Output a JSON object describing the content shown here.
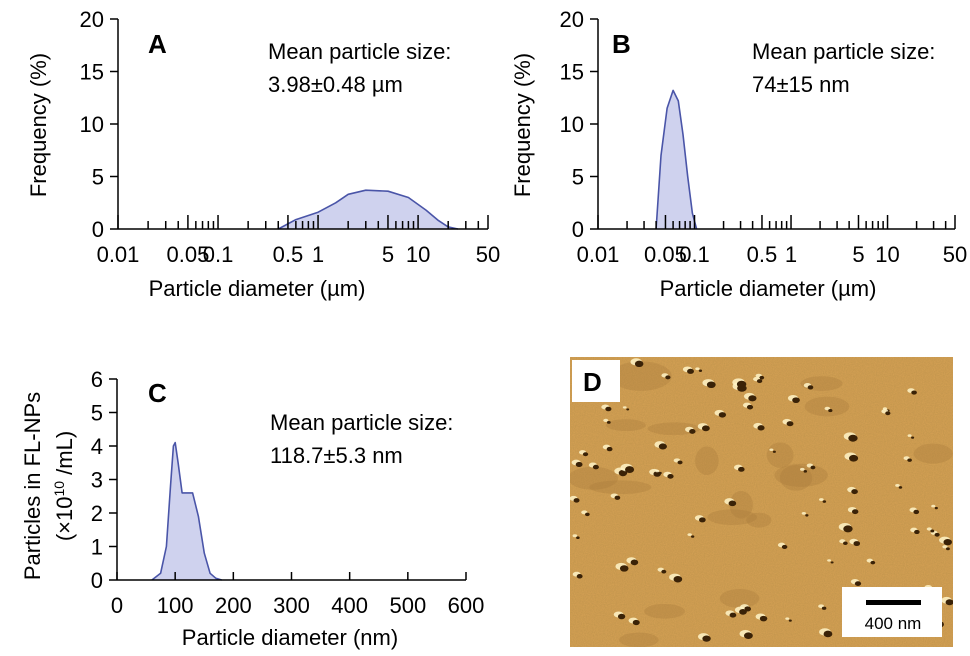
{
  "chart_data": [
    {
      "panel": "A",
      "type": "area",
      "xscale": "log",
      "xlabel": "Particle diameter (µm)",
      "ylabel": "Frequency (%)",
      "ylim": [
        0,
        20
      ],
      "yticks": [
        0,
        5,
        10,
        15,
        20
      ],
      "xtick_labels": [
        {
          "x": 0.01,
          "label": "0.01"
        },
        {
          "x": 0.05,
          "label": "0.05"
        },
        {
          "x": 0.1,
          "label": "0.1"
        },
        {
          "x": 0.5,
          "label": "0.5"
        },
        {
          "x": 1,
          "label": "1"
        },
        {
          "x": 5,
          "label": "5"
        },
        {
          "x": 10,
          "label": "10"
        },
        {
          "x": 50,
          "label": "50"
        }
      ],
      "annotation": [
        "Mean particle size:",
        "3.98±0.48 µm"
      ],
      "color": "#4a55a8",
      "fill": "#cfd2ee",
      "series": [
        {
          "x": [
            0.4,
            0.6,
            1,
            1.5,
            2,
            3,
            5,
            8,
            12,
            16,
            20,
            25
          ],
          "y": [
            0,
            0.9,
            1.6,
            2.5,
            3.3,
            3.7,
            3.6,
            3.0,
            1.8,
            0.8,
            0.2,
            0
          ]
        }
      ]
    },
    {
      "panel": "B",
      "type": "area",
      "xscale": "log",
      "xlabel": "Particle diameter (µm)",
      "ylabel": "Frequency (%)",
      "ylim": [
        0,
        20
      ],
      "yticks": [
        0,
        5,
        10,
        15,
        20
      ],
      "xtick_labels": [
        {
          "x": 0.01,
          "label": "0.01"
        },
        {
          "x": 0.05,
          "label": "0.05"
        },
        {
          "x": 0.1,
          "label": "0.1"
        },
        {
          "x": 0.5,
          "label": "0.5"
        },
        {
          "x": 1,
          "label": "1"
        },
        {
          "x": 5,
          "label": "5"
        },
        {
          "x": 10,
          "label": "10"
        },
        {
          "x": 50,
          "label": "50"
        }
      ],
      "annotation": [
        "Mean particle size:",
        "74±15 nm"
      ],
      "color": "#4a55a8",
      "fill": "#cfd2ee",
      "series": [
        {
          "x": [
            0.04,
            0.045,
            0.052,
            0.06,
            0.068,
            0.076,
            0.085,
            0.095,
            0.105
          ],
          "y": [
            0,
            7,
            11.5,
            13.2,
            12.2,
            9,
            5,
            1.5,
            0
          ]
        }
      ]
    },
    {
      "panel": "C",
      "type": "area",
      "xscale": "linear",
      "xlabel": "Particle diameter (nm)",
      "ylabel": [
        "Particles in FL-NPs",
        "(×10",
        "10",
        " /mL)"
      ],
      "ylim": [
        0,
        6
      ],
      "xlim": [
        0,
        600
      ],
      "yticks": [
        0,
        1,
        2,
        3,
        4,
        5,
        6
      ],
      "xticks": [
        0,
        100,
        200,
        300,
        400,
        500,
        600
      ],
      "annotation": [
        "Mean particle size:",
        "118.7±5.3 nm"
      ],
      "color": "#4a55a8",
      "fill": "#cfd2ee",
      "series": [
        {
          "x": [
            60,
            75,
            85,
            92,
            97,
            100,
            105,
            112,
            120,
            130,
            140,
            150,
            160,
            170,
            180
          ],
          "y": [
            0,
            0.2,
            1.0,
            2.8,
            4.0,
            4.1,
            3.5,
            2.6,
            2.6,
            2.6,
            1.9,
            0.8,
            0.2,
            0.05,
            0
          ]
        }
      ]
    }
  ],
  "panelD": {
    "label": "D",
    "scalebar": "400 nm",
    "colors": {
      "background": "#d8a255",
      "dark": "#3a2207",
      "light": "#fff4c8"
    }
  }
}
